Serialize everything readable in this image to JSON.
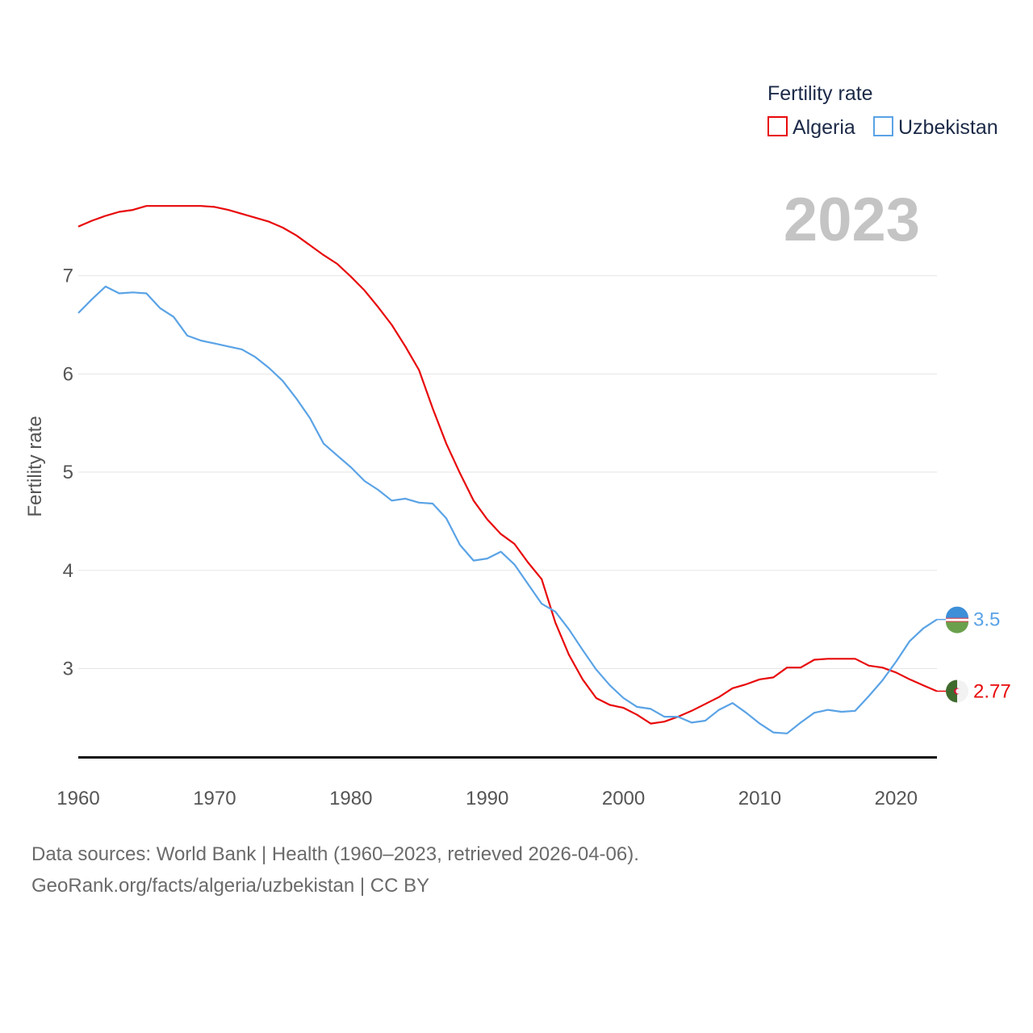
{
  "chart_data": {
    "type": "line",
    "ylabel": "Fertility rate",
    "xlabel": "",
    "year_label": "2023",
    "legend": {
      "title": "Fertility rate",
      "position": "top-right"
    },
    "xlim": [
      1960,
      2023
    ],
    "ylim": [
      2.1,
      7.95
    ],
    "x_ticks": [
      "1960",
      "1970",
      "1980",
      "1990",
      "2000",
      "2010",
      "2020"
    ],
    "y_ticks": [
      "3",
      "4",
      "5",
      "6",
      "7"
    ],
    "grid": true,
    "x": [
      1960,
      1961,
      1962,
      1963,
      1964,
      1965,
      1966,
      1967,
      1968,
      1969,
      1970,
      1971,
      1972,
      1973,
      1974,
      1975,
      1976,
      1977,
      1978,
      1979,
      1980,
      1981,
      1982,
      1983,
      1984,
      1985,
      1986,
      1987,
      1988,
      1989,
      1990,
      1991,
      1992,
      1993,
      1994,
      1995,
      1996,
      1997,
      1998,
      1999,
      2000,
      2001,
      2002,
      2003,
      2004,
      2005,
      2006,
      2007,
      2008,
      2009,
      2010,
      2011,
      2012,
      2013,
      2014,
      2015,
      2016,
      2017,
      2018,
      2019,
      2020,
      2021,
      2022,
      2023
    ],
    "series": [
      {
        "name": "Algeria",
        "color": "#e8080a",
        "end_label": "2.77",
        "values": [
          7.5,
          7.56,
          7.61,
          7.65,
          7.67,
          7.71,
          7.71,
          7.71,
          7.71,
          7.71,
          7.7,
          7.67,
          7.63,
          7.59,
          7.55,
          7.49,
          7.41,
          7.31,
          7.21,
          7.12,
          6.99,
          6.85,
          6.68,
          6.5,
          6.28,
          6.04,
          5.65,
          5.29,
          4.99,
          4.71,
          4.52,
          4.37,
          4.27,
          4.08,
          3.91,
          3.47,
          3.14,
          2.89,
          2.7,
          2.63,
          2.6,
          2.53,
          2.44,
          2.46,
          2.51,
          2.57,
          2.64,
          2.71,
          2.8,
          2.84,
          2.89,
          2.91,
          3.01,
          3.01,
          3.09,
          3.1,
          3.1,
          3.1,
          3.03,
          3.01,
          2.96,
          2.89,
          2.83,
          2.77
        ]
      },
      {
        "name": "Uzbekistan",
        "color": "#5aa3e6",
        "end_label": "3.5",
        "values": [
          6.62,
          6.76,
          6.89,
          6.82,
          6.83,
          6.82,
          6.67,
          6.58,
          6.39,
          6.34,
          6.31,
          6.28,
          6.25,
          6.17,
          6.06,
          5.93,
          5.75,
          5.55,
          5.29,
          5.17,
          5.05,
          4.91,
          4.82,
          4.71,
          4.73,
          4.69,
          4.68,
          4.53,
          4.26,
          4.1,
          4.12,
          4.19,
          4.06,
          3.86,
          3.66,
          3.58,
          3.4,
          3.19,
          2.99,
          2.83,
          2.7,
          2.61,
          2.59,
          2.51,
          2.51,
          2.45,
          2.47,
          2.58,
          2.65,
          2.55,
          2.44,
          2.35,
          2.34,
          2.45,
          2.55,
          2.58,
          2.56,
          2.57,
          2.72,
          2.88,
          3.07,
          3.28,
          3.41,
          3.5
        ]
      }
    ]
  },
  "footer": {
    "line1": "Data sources: World Bank | Health (1960–2023, retrieved 2026-04-06).",
    "line2": "GeoRank.org/facts/algeria/uzbekistan | CC BY"
  }
}
